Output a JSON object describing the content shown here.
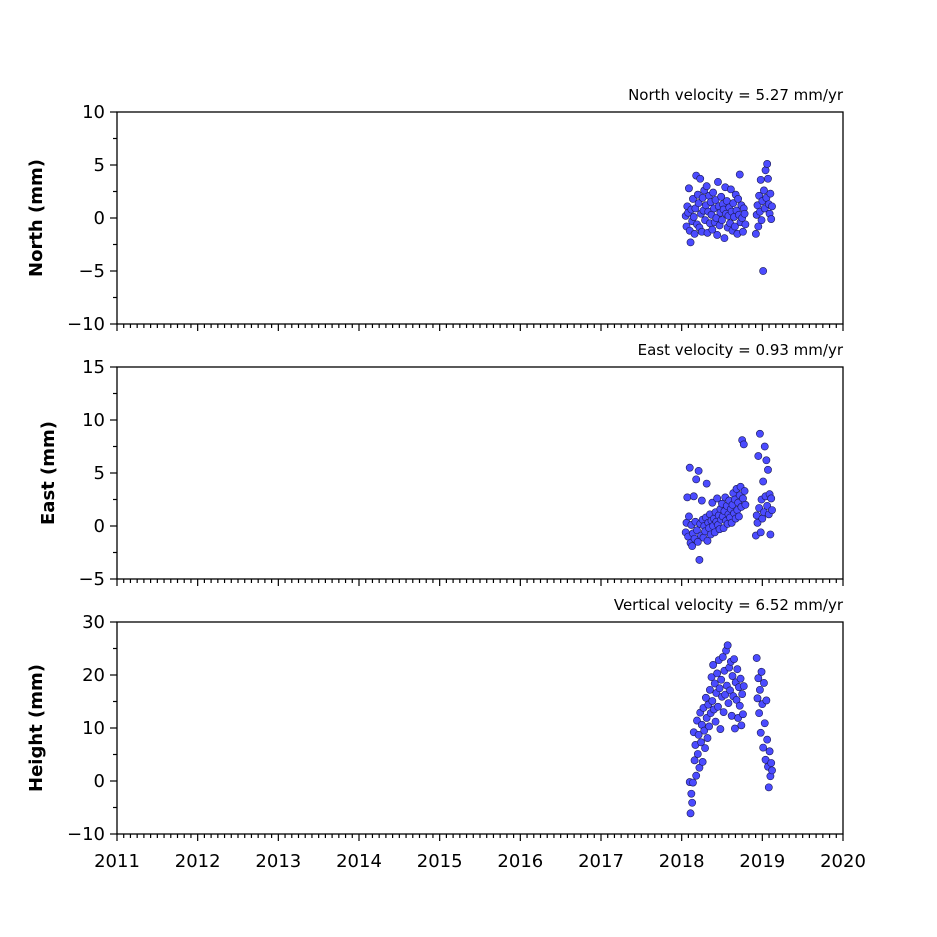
{
  "chart_data": {
    "type": "scatter",
    "x_axis": {
      "range": [
        2011,
        2020
      ],
      "tick_labels": [
        "2011",
        "2012",
        "2013",
        "2014",
        "2015",
        "2016",
        "2017",
        "2018",
        "2019",
        "2020"
      ],
      "minor_ticks_per_year": 12
    },
    "colors": {
      "marker_fill": "#4b4bff",
      "marker_edge": "#1a1a55"
    },
    "panels": [
      {
        "id": "north",
        "ylabel": "North (mm)",
        "velocity_label": "North velocity = 5.27 mm/yr",
        "ylim": [
          -10,
          10
        ],
        "y_ticks": [
          10,
          5,
          0,
          -5,
          -10
        ],
        "y_tick_labels": [
          "10",
          "5",
          "0",
          "−5",
          "−10"
        ],
        "points": [
          [
            2018.05,
            0.2
          ],
          [
            2018.06,
            -0.8
          ],
          [
            2018.07,
            1.1
          ],
          [
            2018.08,
            0.5
          ],
          [
            2018.09,
            2.8
          ],
          [
            2018.1,
            -1.2
          ],
          [
            2018.11,
            -2.3
          ],
          [
            2018.12,
            0.8
          ],
          [
            2018.13,
            -0.3
          ],
          [
            2018.14,
            1.8
          ],
          [
            2018.15,
            0.1
          ],
          [
            2018.16,
            -1.5
          ],
          [
            2018.17,
            0.9
          ],
          [
            2018.18,
            4.0
          ],
          [
            2018.19,
            -0.6
          ],
          [
            2018.2,
            2.2
          ],
          [
            2018.21,
            1.4
          ],
          [
            2018.22,
            -0.9
          ],
          [
            2018.23,
            3.7
          ],
          [
            2018.24,
            0.4
          ],
          [
            2018.25,
            -1.3
          ],
          [
            2018.26,
            1.9
          ],
          [
            2018.27,
            0.7
          ],
          [
            2018.28,
            2.6
          ],
          [
            2018.29,
            -0.2
          ],
          [
            2018.3,
            1.2
          ],
          [
            2018.31,
            3.0
          ],
          [
            2018.32,
            -1.4
          ],
          [
            2018.33,
            0.6
          ],
          [
            2018.34,
            2.1
          ],
          [
            2018.35,
            -0.5
          ],
          [
            2018.36,
            1.5
          ],
          [
            2018.37,
            0.3
          ],
          [
            2018.38,
            -1.1
          ],
          [
            2018.39,
            2.4
          ],
          [
            2018.4,
            0.9
          ],
          [
            2018.41,
            -0.4
          ],
          [
            2018.42,
            1.7
          ],
          [
            2018.43,
            0.0
          ],
          [
            2018.44,
            -1.6
          ],
          [
            2018.45,
            3.4
          ],
          [
            2018.46,
            1.1
          ],
          [
            2018.47,
            -0.7
          ],
          [
            2018.48,
            0.5
          ],
          [
            2018.49,
            2.0
          ],
          [
            2018.5,
            -0.2
          ],
          [
            2018.51,
            1.3
          ],
          [
            2018.52,
            0.8
          ],
          [
            2018.53,
            -1.9
          ],
          [
            2018.54,
            2.9
          ],
          [
            2018.55,
            0.4
          ],
          [
            2018.56,
            1.6
          ],
          [
            2018.57,
            -0.9
          ],
          [
            2018.58,
            0.2
          ],
          [
            2018.59,
            1.0
          ],
          [
            2018.6,
            -0.5
          ],
          [
            2018.61,
            2.7
          ],
          [
            2018.62,
            0.6
          ],
          [
            2018.63,
            -1.2
          ],
          [
            2018.64,
            1.4
          ],
          [
            2018.65,
            0.1
          ],
          [
            2018.66,
            -0.8
          ],
          [
            2018.67,
            2.2
          ],
          [
            2018.68,
            0.7
          ],
          [
            2018.69,
            -1.5
          ],
          [
            2018.7,
            1.8
          ],
          [
            2018.71,
            0.3
          ],
          [
            2018.72,
            4.1
          ],
          [
            2018.73,
            -0.4
          ],
          [
            2018.74,
            1.2
          ],
          [
            2018.75,
            0.0
          ],
          [
            2018.76,
            -1.3
          ],
          [
            2018.77,
            0.9
          ],
          [
            2018.78,
            0.4
          ],
          [
            2018.79,
            -0.6
          ],
          [
            2018.92,
            -1.5
          ],
          [
            2018.93,
            0.3
          ],
          [
            2018.94,
            1.2
          ],
          [
            2018.95,
            -0.8
          ],
          [
            2018.96,
            2.1
          ],
          [
            2018.97,
            0.6
          ],
          [
            2018.98,
            3.6
          ],
          [
            2018.99,
            -0.2
          ],
          [
            2019.0,
            1.6
          ],
          [
            2019.01,
            -5.0
          ],
          [
            2019.02,
            2.6
          ],
          [
            2019.03,
            0.9
          ],
          [
            2019.04,
            4.5
          ],
          [
            2019.05,
            1.9
          ],
          [
            2019.06,
            5.1
          ],
          [
            2019.07,
            3.7
          ],
          [
            2019.08,
            1.3
          ],
          [
            2019.09,
            0.4
          ],
          [
            2019.1,
            2.3
          ],
          [
            2019.11,
            -0.1
          ],
          [
            2019.12,
            1.1
          ]
        ]
      },
      {
        "id": "east",
        "ylabel": "East (mm)",
        "velocity_label": "East velocity = 0.93 mm/yr",
        "ylim": [
          -5,
          15
        ],
        "y_ticks": [
          15,
          10,
          5,
          0,
          -5
        ],
        "y_tick_labels": [
          "15",
          "10",
          "5",
          "0",
          "−5"
        ],
        "points": [
          [
            2018.05,
            -0.6
          ],
          [
            2018.06,
            0.3
          ],
          [
            2018.07,
            2.7
          ],
          [
            2018.08,
            -1.0
          ],
          [
            2018.09,
            0.9
          ],
          [
            2018.1,
            5.5
          ],
          [
            2018.11,
            -1.6
          ],
          [
            2018.12,
            0.1
          ],
          [
            2018.13,
            -1.9
          ],
          [
            2018.14,
            -0.7
          ],
          [
            2018.15,
            2.8
          ],
          [
            2018.16,
            -1.2
          ],
          [
            2018.17,
            0.4
          ],
          [
            2018.18,
            4.4
          ],
          [
            2018.19,
            -0.4
          ],
          [
            2018.2,
            -1.5
          ],
          [
            2018.21,
            5.2
          ],
          [
            2018.22,
            -3.2
          ],
          [
            2018.23,
            0.2
          ],
          [
            2018.24,
            -0.9
          ],
          [
            2018.25,
            2.4
          ],
          [
            2018.26,
            0.6
          ],
          [
            2018.27,
            -1.1
          ],
          [
            2018.28,
            0.0
          ],
          [
            2018.29,
            -0.5
          ],
          [
            2018.3,
            0.8
          ],
          [
            2018.31,
            4.0
          ],
          [
            2018.32,
            -1.4
          ],
          [
            2018.33,
            0.3
          ],
          [
            2018.34,
            -0.2
          ],
          [
            2018.35,
            1.1
          ],
          [
            2018.36,
            -0.8
          ],
          [
            2018.37,
            0.5
          ],
          [
            2018.38,
            2.2
          ],
          [
            2018.39,
            0.0
          ],
          [
            2018.4,
            0.7
          ],
          [
            2018.41,
            -0.6
          ],
          [
            2018.42,
            1.3
          ],
          [
            2018.43,
            0.4
          ],
          [
            2018.44,
            2.6
          ],
          [
            2018.45,
            0.1
          ],
          [
            2018.46,
            1.0
          ],
          [
            2018.47,
            -0.3
          ],
          [
            2018.48,
            1.6
          ],
          [
            2018.49,
            0.6
          ],
          [
            2018.5,
            2.1
          ],
          [
            2018.51,
            0.9
          ],
          [
            2018.52,
            -0.2
          ],
          [
            2018.53,
            1.4
          ],
          [
            2018.54,
            2.7
          ],
          [
            2018.55,
            0.5
          ],
          [
            2018.56,
            1.9
          ],
          [
            2018.57,
            0.2
          ],
          [
            2018.58,
            1.1
          ],
          [
            2018.59,
            2.4
          ],
          [
            2018.6,
            0.8
          ],
          [
            2018.61,
            1.6
          ],
          [
            2018.62,
            0.3
          ],
          [
            2018.63,
            2.0
          ],
          [
            2018.64,
            3.1
          ],
          [
            2018.65,
            1.2
          ],
          [
            2018.66,
            2.5
          ],
          [
            2018.67,
            0.7
          ],
          [
            2018.68,
            3.5
          ],
          [
            2018.69,
            1.5
          ],
          [
            2018.7,
            2.2
          ],
          [
            2018.71,
            0.9
          ],
          [
            2018.72,
            2.9
          ],
          [
            2018.73,
            3.7
          ],
          [
            2018.74,
            1.8
          ],
          [
            2018.75,
            8.1
          ],
          [
            2018.76,
            2.6
          ],
          [
            2018.77,
            7.7
          ],
          [
            2018.78,
            3.3
          ],
          [
            2018.79,
            2.0
          ],
          [
            2018.92,
            -0.9
          ],
          [
            2018.93,
            1.0
          ],
          [
            2018.94,
            0.3
          ],
          [
            2018.95,
            6.6
          ],
          [
            2018.96,
            1.7
          ],
          [
            2018.97,
            8.7
          ],
          [
            2018.98,
            -0.6
          ],
          [
            2018.99,
            2.5
          ],
          [
            2019.0,
            0.7
          ],
          [
            2019.01,
            4.2
          ],
          [
            2019.02,
            1.3
          ],
          [
            2019.03,
            7.5
          ],
          [
            2019.04,
            2.8
          ],
          [
            2019.05,
            6.2
          ],
          [
            2019.06,
            1.9
          ],
          [
            2019.07,
            5.3
          ],
          [
            2019.08,
            1.1
          ],
          [
            2019.09,
            3.0
          ],
          [
            2019.1,
            -0.8
          ],
          [
            2019.11,
            2.6
          ],
          [
            2019.12,
            1.5
          ]
        ]
      },
      {
        "id": "height",
        "ylabel": "Height (mm)",
        "velocity_label": "Vertical velocity = 6.52 mm/yr",
        "ylim": [
          -10,
          30
        ],
        "y_ticks": [
          30,
          20,
          10,
          0,
          -10
        ],
        "y_tick_labels": [
          "30",
          "20",
          "10",
          "0",
          "−10"
        ],
        "points": [
          [
            2018.1,
            -0.2
          ],
          [
            2018.11,
            -6.1
          ],
          [
            2018.12,
            -2.4
          ],
          [
            2018.13,
            -4.1
          ],
          [
            2018.14,
            -0.3
          ],
          [
            2018.15,
            9.2
          ],
          [
            2018.16,
            3.9
          ],
          [
            2018.17,
            6.8
          ],
          [
            2018.18,
            1.0
          ],
          [
            2018.19,
            11.4
          ],
          [
            2018.2,
            5.1
          ],
          [
            2018.21,
            8.7
          ],
          [
            2018.22,
            2.5
          ],
          [
            2018.23,
            12.9
          ],
          [
            2018.24,
            7.3
          ],
          [
            2018.25,
            10.6
          ],
          [
            2018.26,
            3.6
          ],
          [
            2018.27,
            13.8
          ],
          [
            2018.28,
            9.5
          ],
          [
            2018.29,
            6.2
          ],
          [
            2018.3,
            15.7
          ],
          [
            2018.31,
            11.9
          ],
          [
            2018.32,
            8.1
          ],
          [
            2018.33,
            14.4
          ],
          [
            2018.34,
            10.3
          ],
          [
            2018.35,
            17.2
          ],
          [
            2018.36,
            12.8
          ],
          [
            2018.37,
            19.6
          ],
          [
            2018.38,
            15.1
          ],
          [
            2018.39,
            21.9
          ],
          [
            2018.4,
            13.5
          ],
          [
            2018.41,
            18.4
          ],
          [
            2018.42,
            11.2
          ],
          [
            2018.43,
            16.6
          ],
          [
            2018.44,
            20.3
          ],
          [
            2018.45,
            14.0
          ],
          [
            2018.46,
            22.8
          ],
          [
            2018.47,
            17.5
          ],
          [
            2018.48,
            9.8
          ],
          [
            2018.49,
            19.1
          ],
          [
            2018.5,
            15.9
          ],
          [
            2018.51,
            23.4
          ],
          [
            2018.52,
            13.0
          ],
          [
            2018.53,
            20.8
          ],
          [
            2018.54,
            16.3
          ],
          [
            2018.55,
            24.6
          ],
          [
            2018.56,
            18.0
          ],
          [
            2018.57,
            25.6
          ],
          [
            2018.58,
            14.7
          ],
          [
            2018.59,
            21.4
          ],
          [
            2018.6,
            17.1
          ],
          [
            2018.61,
            22.5
          ],
          [
            2018.62,
            12.3
          ],
          [
            2018.63,
            19.8
          ],
          [
            2018.64,
            16.0
          ],
          [
            2018.65,
            23.0
          ],
          [
            2018.66,
            9.9
          ],
          [
            2018.67,
            18.6
          ],
          [
            2018.68,
            15.3
          ],
          [
            2018.69,
            21.1
          ],
          [
            2018.7,
            11.9
          ],
          [
            2018.71,
            17.7
          ],
          [
            2018.72,
            14.2
          ],
          [
            2018.73,
            19.3
          ],
          [
            2018.74,
            10.5
          ],
          [
            2018.75,
            16.4
          ],
          [
            2018.76,
            12.6
          ],
          [
            2018.77,
            17.9
          ],
          [
            2018.93,
            23.2
          ],
          [
            2018.94,
            15.6
          ],
          [
            2018.95,
            19.4
          ],
          [
            2018.96,
            12.8
          ],
          [
            2018.97,
            17.2
          ],
          [
            2018.98,
            9.1
          ],
          [
            2018.99,
            20.6
          ],
          [
            2019.0,
            14.5
          ],
          [
            2019.01,
            6.3
          ],
          [
            2019.02,
            18.5
          ],
          [
            2019.03,
            10.9
          ],
          [
            2019.04,
            4.0
          ],
          [
            2019.05,
            15.2
          ],
          [
            2019.06,
            7.8
          ],
          [
            2019.07,
            2.7
          ],
          [
            2019.08,
            -1.2
          ],
          [
            2019.09,
            5.6
          ],
          [
            2019.1,
            0.9
          ],
          [
            2019.11,
            3.4
          ],
          [
            2019.12,
            2.0
          ]
        ]
      }
    ]
  }
}
